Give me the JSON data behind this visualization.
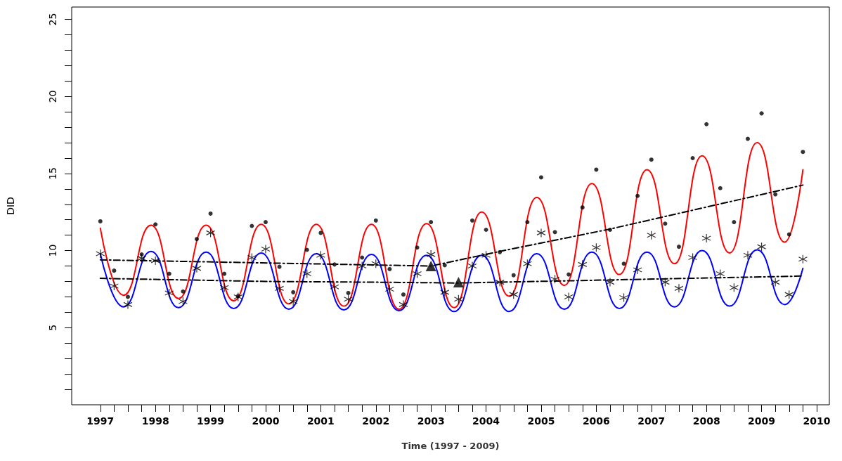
{
  "chart_data": {
    "type": "scatter",
    "xlabel": "Time (1997 - 2009)",
    "ylabel": "DID",
    "x": [
      1997,
      1997.25,
      1997.5,
      1997.75,
      1998,
      1998.25,
      1998.5,
      1998.75,
      1999,
      1999.25,
      1999.5,
      1999.75,
      2000,
      2000.25,
      2000.5,
      2000.75,
      2001,
      2001.25,
      2001.5,
      2001.75,
      2002,
      2002.25,
      2002.5,
      2002.75,
      2003,
      2003.25,
      2003.5,
      2003.75,
      2004,
      2004.25,
      2004.5,
      2004.75,
      2005,
      2005.25,
      2005.5,
      2005.75,
      2006,
      2006.25,
      2006.5,
      2006.75,
      2007,
      2007.25,
      2007.5,
      2007.75,
      2008,
      2008.25,
      2008.5,
      2008.75,
      2009,
      2009.25,
      2009.5,
      2009.75
    ],
    "series": [
      {
        "type": "line",
        "color": "#ff0000",
        "marker": "none",
        "line_style": "solid",
        "x": [
          1997,
          1997.42,
          1997.92,
          1998.42,
          1998.92,
          1999.42,
          1999.92,
          2000.42,
          2000.92,
          2001.42,
          2001.92,
          2002.42,
          2002.92,
          2003.42,
          2003.92,
          2004.42,
          2004.92,
          2005.42,
          2005.92,
          2006.42,
          2006.92,
          2007.42,
          2007.92,
          2008.42,
          2008.92,
          2009.42,
          2009.75
        ],
        "values": [
          11.45,
          7.1,
          11.65,
          6.9,
          11.65,
          6.75,
          11.7,
          6.55,
          11.7,
          6.4,
          11.7,
          6.2,
          11.75,
          6.3,
          12.5,
          7.05,
          13.45,
          7.75,
          14.35,
          8.45,
          15.25,
          9.15,
          16.15,
          9.85,
          17.0,
          10.55,
          15.25
        ]
      },
      {
        "type": "line",
        "color": "#0000ff",
        "marker": "none",
        "line_style": "solid",
        "x": [
          1997,
          1997.42,
          1997.92,
          1998.42,
          1998.92,
          1999.42,
          1999.92,
          2000.42,
          2000.92,
          2001.42,
          2001.92,
          2002.42,
          2002.92,
          2003.42,
          2003.92,
          2004.42,
          2004.92,
          2005.42,
          2005.92,
          2006.42,
          2006.92,
          2007.42,
          2007.92,
          2008.42,
          2008.92,
          2009.42,
          2009.75
        ],
        "values": [
          9.8,
          6.35,
          9.95,
          6.3,
          9.9,
          6.25,
          9.85,
          6.2,
          9.8,
          6.15,
          9.75,
          6.1,
          9.7,
          6.05,
          9.7,
          6.05,
          9.8,
          6.2,
          9.9,
          6.25,
          9.9,
          6.35,
          10.0,
          6.4,
          10.05,
          6.5,
          8.85
        ]
      },
      {
        "type": "line",
        "color": "#000000",
        "marker": "none",
        "line_style": "dashed",
        "x": [
          1997,
          2003,
          2004.25,
          2006.25,
          2009.75
        ],
        "values": [
          9.4,
          9.0,
          9.95,
          11.4,
          14.25
        ]
      },
      {
        "type": "line",
        "color": "#000000",
        "marker": "none",
        "line_style": "dashed",
        "x": [
          1997,
          2000,
          2002,
          2003.5,
          2009.75
        ],
        "values": [
          8.2,
          8.0,
          7.95,
          7.9,
          8.35
        ]
      },
      {
        "color": "#000000",
        "marker": "circle",
        "values": [
          11.9,
          8.7,
          7.0,
          9.75,
          11.7,
          8.5,
          7.35,
          10.75,
          12.4,
          8.5,
          7.05,
          11.6,
          11.85,
          8.95,
          7.3,
          10.05,
          11.15,
          9.1,
          7.25,
          9.55,
          11.95,
          8.8,
          7.15,
          10.2,
          11.85,
          9.05,
          null,
          11.95,
          11.35,
          9.9,
          8.4,
          11.85,
          14.75,
          11.2,
          8.45,
          12.8,
          15.25,
          11.35,
          9.15,
          13.55,
          15.9,
          11.75,
          10.25,
          16.0,
          18.2,
          14.05,
          11.85,
          17.25,
          18.9,
          13.65,
          11.05,
          16.4
        ]
      },
      {
        "color": "#000000",
        "marker": "cross",
        "values": [
          9.8,
          7.7,
          6.5,
          9.5,
          9.35,
          7.25,
          6.7,
          8.85,
          11.15,
          7.6,
          7.0,
          9.55,
          10.1,
          7.55,
          6.7,
          8.5,
          9.7,
          7.65,
          6.85,
          9.0,
          9.15,
          7.5,
          6.5,
          8.5,
          9.75,
          7.3,
          6.85,
          9.0,
          9.7,
          7.95,
          7.15,
          9.15,
          11.15,
          8.15,
          7.0,
          9.1,
          10.2,
          7.95,
          6.95,
          8.75,
          11.0,
          7.95,
          7.55,
          9.55,
          10.8,
          8.5,
          7.6,
          9.7,
          10.25,
          7.95,
          7.15,
          9.45
        ]
      },
      {
        "color": "#000000",
        "marker": "triangle",
        "x": [
          2003,
          2003.5
        ],
        "values": [
          9.0,
          7.95
        ]
      }
    ],
    "xlim": [
      1996.48,
      2010.23
    ],
    "xticks": [
      1997,
      {
        "value": 1997.25,
        "label": null
      },
      {
        "value": 1997.5,
        "label": null
      },
      {
        "value": 1997.75,
        "label": null
      },
      1998,
      {
        "value": 1998.25,
        "label": null
      },
      {
        "value": 1998.5,
        "label": null
      },
      {
        "value": 1998.75,
        "label": null
      },
      1999,
      {
        "value": 1999.25,
        "label": null
      },
      {
        "value": 1999.5,
        "label": null
      },
      {
        "value": 1999.75,
        "label": null
      },
      2000,
      {
        "value": 2000.25,
        "label": null
      },
      {
        "value": 2000.5,
        "label": null
      },
      {
        "value": 2000.75,
        "label": null
      },
      2001,
      {
        "value": 2001.25,
        "label": null
      },
      {
        "value": 2001.5,
        "label": null
      },
      {
        "value": 2001.75,
        "label": null
      },
      2002,
      {
        "value": 2002.25,
        "label": null
      },
      {
        "value": 2002.5,
        "label": null
      },
      {
        "value": 2002.75,
        "label": null
      },
      2003,
      {
        "value": 2003.25,
        "label": null
      },
      {
        "value": 2003.5,
        "label": null
      },
      {
        "value": 2003.75,
        "label": null
      },
      2004,
      {
        "value": 2004.25,
        "label": null
      },
      {
        "value": 2004.5,
        "label": null
      },
      {
        "value": 2004.75,
        "label": null
      },
      2005,
      {
        "value": 2005.25,
        "label": null
      },
      {
        "value": 2005.5,
        "label": null
      },
      {
        "value": 2005.75,
        "label": null
      },
      2006,
      {
        "value": 2006.25,
        "label": null
      },
      {
        "value": 2006.5,
        "label": null
      },
      {
        "value": 2006.75,
        "label": null
      },
      2007,
      {
        "value": 2007.25,
        "label": null
      },
      {
        "value": 2007.5,
        "label": null
      },
      {
        "value": 2007.75,
        "label": null
      },
      2008,
      {
        "value": 2008.25,
        "label": null
      },
      {
        "value": 2008.5,
        "label": null
      },
      {
        "value": 2008.75,
        "label": null
      },
      2009,
      {
        "value": 2009.25,
        "label": null
      },
      {
        "value": 2009.5,
        "label": null
      },
      {
        "value": 2009.75,
        "label": null
      },
      2010
    ],
    "ylim": [
      0,
      25.8
    ],
    "yticks": [
      {
        "value": 1,
        "label": null
      },
      {
        "value": 2,
        "label": null
      },
      {
        "value": 3,
        "label": null
      },
      {
        "value": 4,
        "label": null
      },
      5,
      {
        "value": 6,
        "label": null
      },
      {
        "value": 7,
        "label": null
      },
      {
        "value": 8,
        "label": null
      },
      {
        "value": 9,
        "label": null
      },
      10,
      {
        "value": 11,
        "label": null
      },
      {
        "value": 12,
        "label": null
      },
      {
        "value": 13,
        "label": null
      },
      {
        "value": 14,
        "label": null
      },
      15,
      {
        "value": 16,
        "label": null
      },
      {
        "value": 17,
        "label": null
      },
      {
        "value": 18,
        "label": null
      },
      {
        "value": 19,
        "label": null
      },
      20,
      {
        "value": 21,
        "label": null
      },
      {
        "value": 22,
        "label": null
      },
      {
        "value": 23,
        "label": null
      },
      {
        "value": 24,
        "label": null
      },
      25
    ],
    "grid": false
  }
}
